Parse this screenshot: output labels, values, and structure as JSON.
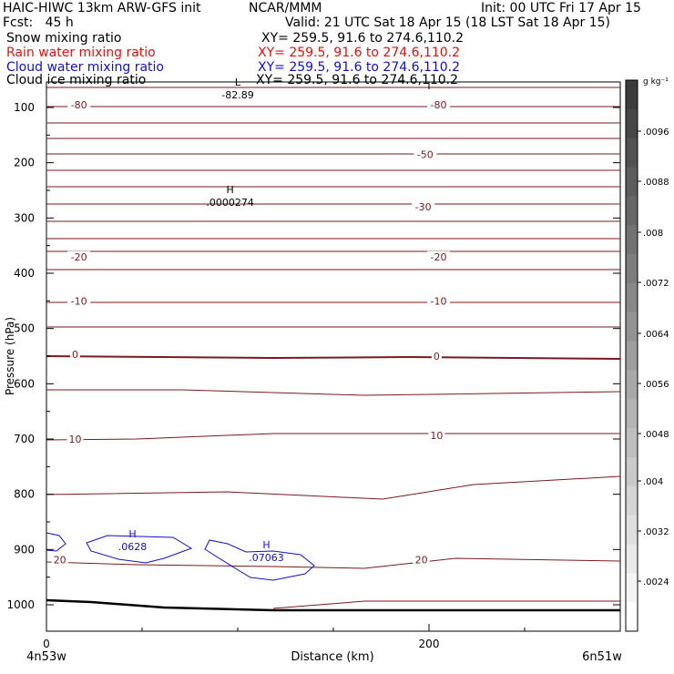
{
  "header": {
    "title_left": "HAIC-HIWC 13km ARW-GFS init",
    "org": "NCAR/MMM",
    "init": "Init: 00 UTC Fri 17 Apr 15",
    "fcst": "Fcst:   45 h",
    "valid": "Valid: 21 UTC Sat 18 Apr 15 (18 LST Sat 18 Apr 15)",
    "fields": [
      {
        "name": "Snow mixing ratio",
        "xy": "XY= 259.5, 91.6 to 274.6,110.2",
        "color": "#000000"
      },
      {
        "name": "Rain water mixing ratio",
        "xy": "XY= 259.5, 91.6 to 274.6,110.2",
        "color": "#e01010"
      },
      {
        "name": "Cloud water mixing ratio",
        "xy": "XY= 259.5, 91.6 to 274.6,110.2",
        "color": "#1010d0"
      },
      {
        "name": "Cloud ice mixing ratio",
        "xy": "XY= 259.5, 91.6 to 274.6,110.2",
        "color": "#000000"
      }
    ]
  },
  "chart_data": {
    "type": "cross-section contour",
    "xlabel": "Distance (km)",
    "ylabel": "Pressure (hPa)",
    "xlim": [
      0,
      300
    ],
    "ylim": [
      1050,
      50
    ],
    "x_ticks": [
      0,
      200
    ],
    "y_ticks": [
      100,
      200,
      300,
      400,
      500,
      600,
      700,
      800,
      900,
      1000
    ],
    "x_end_labels": [
      "4n53w",
      "6n51w"
    ],
    "colorbar": {
      "unit": "g kg⁻¹",
      "ticks": [
        ".0096",
        ".0088",
        ".008",
        ".0072",
        ".0064",
        ".0056",
        ".0048",
        ".004",
        ".0032",
        ".0024"
      ]
    },
    "temperature_contour_labels": [
      {
        "text": "-80",
        "x": 17,
        "p": 95
      },
      {
        "text": "-80",
        "x": 205,
        "p": 95
      },
      {
        "text": "-50",
        "x": 198,
        "p": 185
      },
      {
        "text": "-30",
        "x": 197,
        "p": 280
      },
      {
        "text": "-20",
        "x": 17,
        "p": 370
      },
      {
        "text": "-20",
        "x": 205,
        "p": 370
      },
      {
        "text": "-10",
        "x": 17,
        "p": 450
      },
      {
        "text": "-10",
        "x": 205,
        "p": 450
      },
      {
        "text": "0",
        "x": 15,
        "p": 547
      },
      {
        "text": "0",
        "x": 204,
        "p": 550
      },
      {
        "text": "10",
        "x": 15,
        "p": 700
      },
      {
        "text": "10",
        "x": 204,
        "p": 693
      },
      {
        "text": "20",
        "x": 7,
        "p": 918
      },
      {
        "text": "20",
        "x": 196,
        "p": 918
      }
    ],
    "extrema_labels": [
      {
        "type": "L",
        "value": "-82.89",
        "x": 100,
        "p": 70,
        "color": "#000000"
      },
      {
        "type": "H",
        "value": ".0000274",
        "x": 96,
        "p": 265,
        "color": "#000000"
      },
      {
        "type": "H",
        "value": ".0628",
        "x": 45,
        "p": 888,
        "color": "#1010d0"
      },
      {
        "type": "H",
        "value": ".07063",
        "x": 115,
        "p": 908,
        "color": "#1010d0"
      }
    ]
  }
}
